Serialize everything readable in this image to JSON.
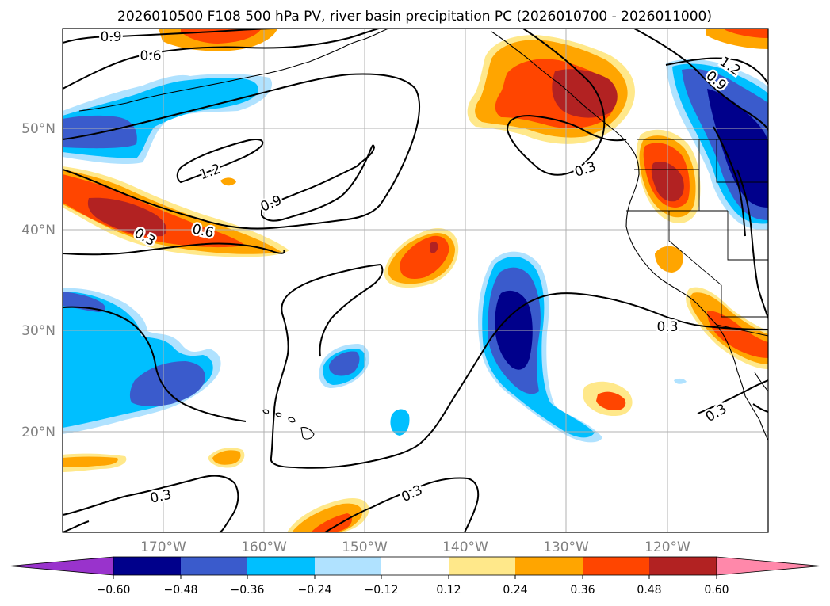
{
  "figure": {
    "title": "2026010500 F108 500 hPa PV, river basin precipitation PC (2026010700 - 2026011000)"
  },
  "map": {
    "lat_labels": [
      "50°N",
      "40°N",
      "30°N",
      "20°N"
    ],
    "lon_labels": [
      "170°W",
      "160°W",
      "150°W",
      "140°W",
      "130°W",
      "120°W"
    ],
    "lat_range": [
      10,
      60
    ],
    "lon_range": [
      -180,
      -110
    ]
  },
  "contours": {
    "labels": [
      {
        "text": "0.9",
        "name": "label-0-9-nw"
      },
      {
        "text": "0.6",
        "name": "label-0-6-nw"
      },
      {
        "text": "1.2",
        "name": "label-1-2-center"
      },
      {
        "text": "0.9",
        "name": "label-0-9-center"
      },
      {
        "text": "0.6",
        "name": "label-0-6-west"
      },
      {
        "text": "0.3",
        "name": "label-0-3-west"
      },
      {
        "text": "0.3",
        "name": "label-0-3-north"
      },
      {
        "text": "1.2",
        "name": "label-1-2-ne"
      },
      {
        "text": "0.9",
        "name": "label-0-9-ne"
      },
      {
        "text": "0.3",
        "name": "label-0-3-east"
      },
      {
        "text": "0.3",
        "name": "label-0-3-se"
      },
      {
        "text": "0.3",
        "name": "label-0-3-sw"
      },
      {
        "text": "0.3",
        "name": "label-0-3-south"
      }
    ]
  },
  "colorbar": {
    "ticks": [
      "−0.60",
      "−0.48",
      "−0.36",
      "−0.24",
      "−0.12",
      "0.12",
      "0.24",
      "0.36",
      "0.48",
      "0.60"
    ],
    "colors": {
      "under": "#9933cc",
      "neg060": "#00008b",
      "neg048": "#3a5bcc",
      "neg036": "#00bfff",
      "neg024": "#b0e2ff",
      "neutral": "#ffffff",
      "pos012": "#ffe88a",
      "pos024": "#ffa500",
      "pos036": "#ff4500",
      "pos048": "#b22222",
      "over": "#ff88aa"
    }
  }
}
